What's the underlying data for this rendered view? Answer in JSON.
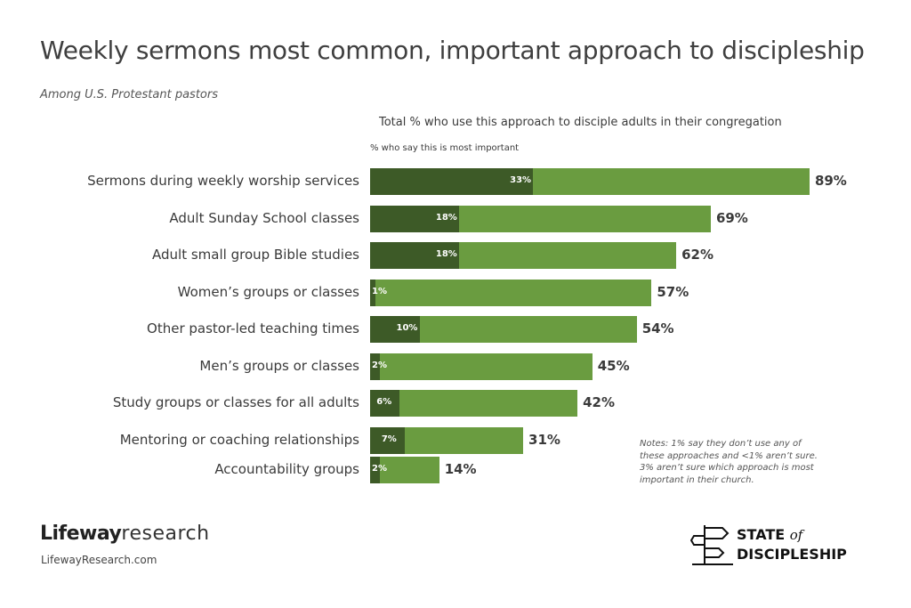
{
  "header": {
    "title": "Weekly sermons most common, important approach to discipleship",
    "subtitle": "Among U.S. Protestant pastors"
  },
  "chart_data": {
    "type": "bar",
    "orientation": "horizontal",
    "title": "Weekly sermons most common, important approach to discipleship",
    "subtitle": "Among U.S. Protestant pastors",
    "categories": [
      "Sermons during weekly worship services",
      "Adult Sunday School classes",
      "Adult small group Bible studies",
      "Women’s groups or classes",
      "Other pastor-led teaching times",
      "Men’s groups or classes",
      "Study groups or classes for all adults",
      "Mentoring or coaching relationships",
      "Accountability groups"
    ],
    "series": [
      {
        "name": "Total % who use this approach to disciple adults in their congregation",
        "color": "#6a9c40",
        "values": [
          89,
          69,
          62,
          57,
          54,
          45,
          42,
          31,
          14
        ],
        "labels": [
          "89%",
          "69%",
          "62%",
          "57%",
          "54%",
          "45%",
          "42%",
          "31%",
          "14%"
        ]
      },
      {
        "name": "% who say this is most important",
        "color": "#3d5a27",
        "values": [
          33,
          18,
          18,
          1,
          10,
          2,
          6,
          7,
          2
        ],
        "labels": [
          "33%",
          "18%",
          "18%",
          "1%",
          "10%",
          "2%",
          "6%",
          "7%",
          "2%"
        ]
      }
    ],
    "xlim": [
      0,
      100
    ],
    "grid": false,
    "legend": "top",
    "notes": "Notes: 1% say they don’t use any of these approaches and <1% aren’t sure. 3% aren’t sure which approach is most important in their church."
  },
  "legend": {
    "total": "Total % who use this approach to disciple adults in their congregation",
    "important": "% who say this is most important"
  },
  "footer": {
    "brand_bold": "Lifeway",
    "brand_light": "research",
    "url": "LifewayResearch.com",
    "logo_line1": "STATE",
    "logo_of": "of",
    "logo_line2": "DISCIPLESHIP"
  }
}
